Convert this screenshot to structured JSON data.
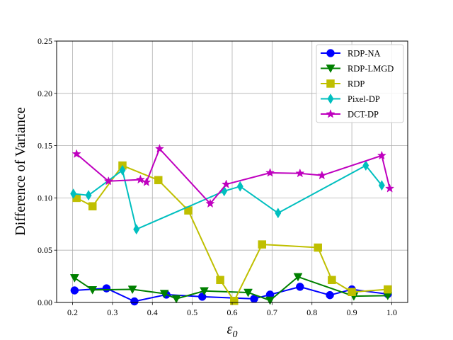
{
  "chart_data": {
    "type": "line",
    "xlabel": "ε0",
    "xlabel_main": "ε",
    "xlabel_sub": "0",
    "ylabel": "Difference of Variance",
    "xlim": [
      0.16,
      1.04
    ],
    "ylim": [
      0.0,
      0.25
    ],
    "xticks": [
      "0.2",
      "0.3",
      "0.4",
      "0.5",
      "0.6",
      "0.7",
      "0.8",
      "0.9",
      "1.0"
    ],
    "yticks": [
      "0.00",
      "0.05",
      "0.10",
      "0.15",
      "0.20",
      "0.25"
    ],
    "grid": true,
    "legend_position": "top-right",
    "series": [
      {
        "name": "RDP-NA",
        "color": "#0000ff",
        "marker": "circle",
        "x": [
          0.205,
          0.285,
          0.355,
          0.435,
          0.525,
          0.655,
          0.695,
          0.77,
          0.845,
          0.9,
          0.99
        ],
        "y": [
          0.0115,
          0.0135,
          0.001,
          0.0075,
          0.0055,
          0.0035,
          0.0075,
          0.015,
          0.007,
          0.0125,
          0.008
        ]
      },
      {
        "name": "RDP-LMGD",
        "color": "#008000",
        "marker": "triangle-down",
        "x": [
          0.205,
          0.25,
          0.35,
          0.43,
          0.46,
          0.53,
          0.64,
          0.695,
          0.765,
          0.905,
          0.99
        ],
        "y": [
          0.0235,
          0.012,
          0.0125,
          0.0085,
          0.0035,
          0.011,
          0.0095,
          0.002,
          0.0245,
          0.006,
          0.0065
        ]
      },
      {
        "name": "RDP",
        "color": "#bfbf00",
        "marker": "square",
        "x": [
          0.21,
          0.25,
          0.325,
          0.415,
          0.49,
          0.57,
          0.605,
          0.675,
          0.815,
          0.85,
          0.9,
          0.99
        ],
        "y": [
          0.1,
          0.092,
          0.131,
          0.117,
          0.088,
          0.0215,
          0.0015,
          0.0555,
          0.0525,
          0.0215,
          0.01,
          0.0125
        ]
      },
      {
        "name": "Pixel-DP",
        "color": "#00bfbf",
        "marker": "thin-diamond",
        "x": [
          0.202,
          0.24,
          0.325,
          0.36,
          0.58,
          0.62,
          0.715,
          0.935,
          0.975
        ],
        "y": [
          0.104,
          0.1025,
          0.1265,
          0.07,
          0.1065,
          0.111,
          0.0855,
          0.131,
          0.112
        ]
      },
      {
        "name": "DCT-DP",
        "color": "#bf00bf",
        "marker": "star",
        "x": [
          0.21,
          0.29,
          0.37,
          0.385,
          0.418,
          0.545,
          0.585,
          0.695,
          0.77,
          0.825,
          0.975,
          0.995
        ],
        "y": [
          0.142,
          0.116,
          0.1175,
          0.115,
          0.147,
          0.0945,
          0.113,
          0.124,
          0.1235,
          0.1215,
          0.1405,
          0.109
        ]
      }
    ]
  }
}
